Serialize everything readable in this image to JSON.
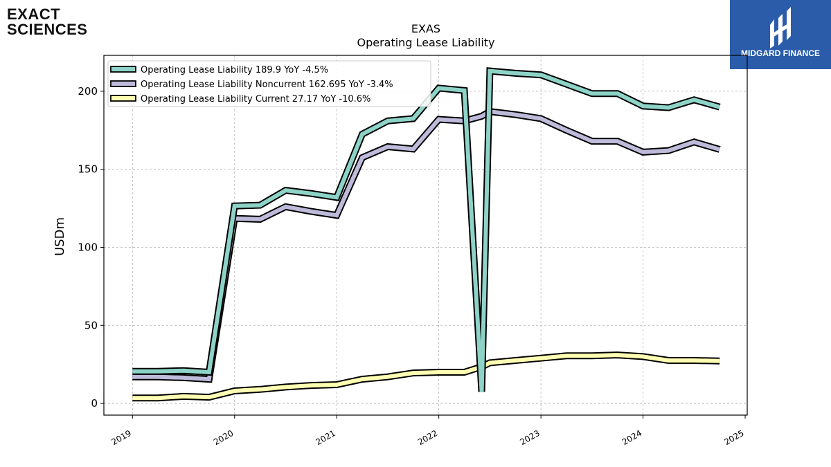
{
  "logos": {
    "left": {
      "line1": "EXACT",
      "line2": "SCIENCES"
    },
    "right": {
      "name": "MIDGARD FINANCE"
    }
  },
  "colors": {
    "total": "#8dd3c7",
    "noncurrent": "#bebada",
    "current": "#ffffb3",
    "accent": "#7b3fe4",
    "brand_box": "#2a5caa"
  },
  "chart_data": {
    "type": "line",
    "title": "EXAS",
    "subtitle": "Operating Lease Liability",
    "xlabel": "",
    "ylabel": "USDm",
    "xlim": [
      2018.72,
      2025.02
    ],
    "ylim": [
      -7.5,
      223
    ],
    "xticks": [
      2019,
      2020,
      2021,
      2022,
      2023,
      2024,
      2025
    ],
    "yticks": [
      0,
      50,
      100,
      150,
      200
    ],
    "grid": true,
    "legend_position": "top-left",
    "x": [
      2019.0,
      2019.25,
      2019.5,
      2019.75,
      2020.0,
      2020.25,
      2020.5,
      2020.75,
      2021.0,
      2021.25,
      2021.5,
      2021.75,
      2022.0,
      2022.25,
      2022.42,
      2022.5,
      2022.75,
      2023.0,
      2023.25,
      2023.5,
      2023.75,
      2024.0,
      2024.25,
      2024.5,
      2024.75
    ],
    "series": [
      {
        "name": "Operating Lease Liability",
        "legend": "Operating Lease Liability  189.9 YoY -4.5%",
        "color_key": "total",
        "values": [
          20.5,
          20.5,
          21.0,
          20.0,
          126.5,
          127.0,
          136.5,
          134.5,
          132.0,
          172.5,
          181.0,
          182.5,
          202.0,
          200.5,
          7.5,
          213.0,
          211.5,
          210.5,
          204.5,
          198.5,
          198.5,
          190.5,
          189.5,
          194.5,
          189.9
        ]
      },
      {
        "name": "Operating Lease Liability Noncurrent",
        "legend": "Operating Lease Liability Noncurrent  162.695 YoY -3.4%",
        "color_key": "noncurrent",
        "values": [
          17.0,
          17.0,
          16.5,
          15.5,
          118.5,
          118.0,
          126.0,
          123.0,
          120.5,
          157.5,
          164.5,
          163.0,
          182.0,
          181.0,
          184.0,
          187.0,
          185.0,
          182.5,
          175.0,
          168.0,
          168.0,
          161.0,
          162.0,
          167.5,
          162.695
        ]
      },
      {
        "name": "Operating Lease Liability Current",
        "legend": "Operating Lease Liability Current  27.17 YoY -10.6%",
        "color_key": "current",
        "values": [
          3.5,
          3.5,
          4.5,
          4.0,
          8.0,
          9.0,
          10.5,
          11.5,
          12.0,
          15.5,
          17.0,
          19.5,
          20.0,
          20.0,
          23.5,
          26.0,
          27.5,
          29.0,
          30.5,
          30.5,
          31.0,
          30.0,
          27.5,
          27.5,
          27.17
        ]
      }
    ]
  }
}
